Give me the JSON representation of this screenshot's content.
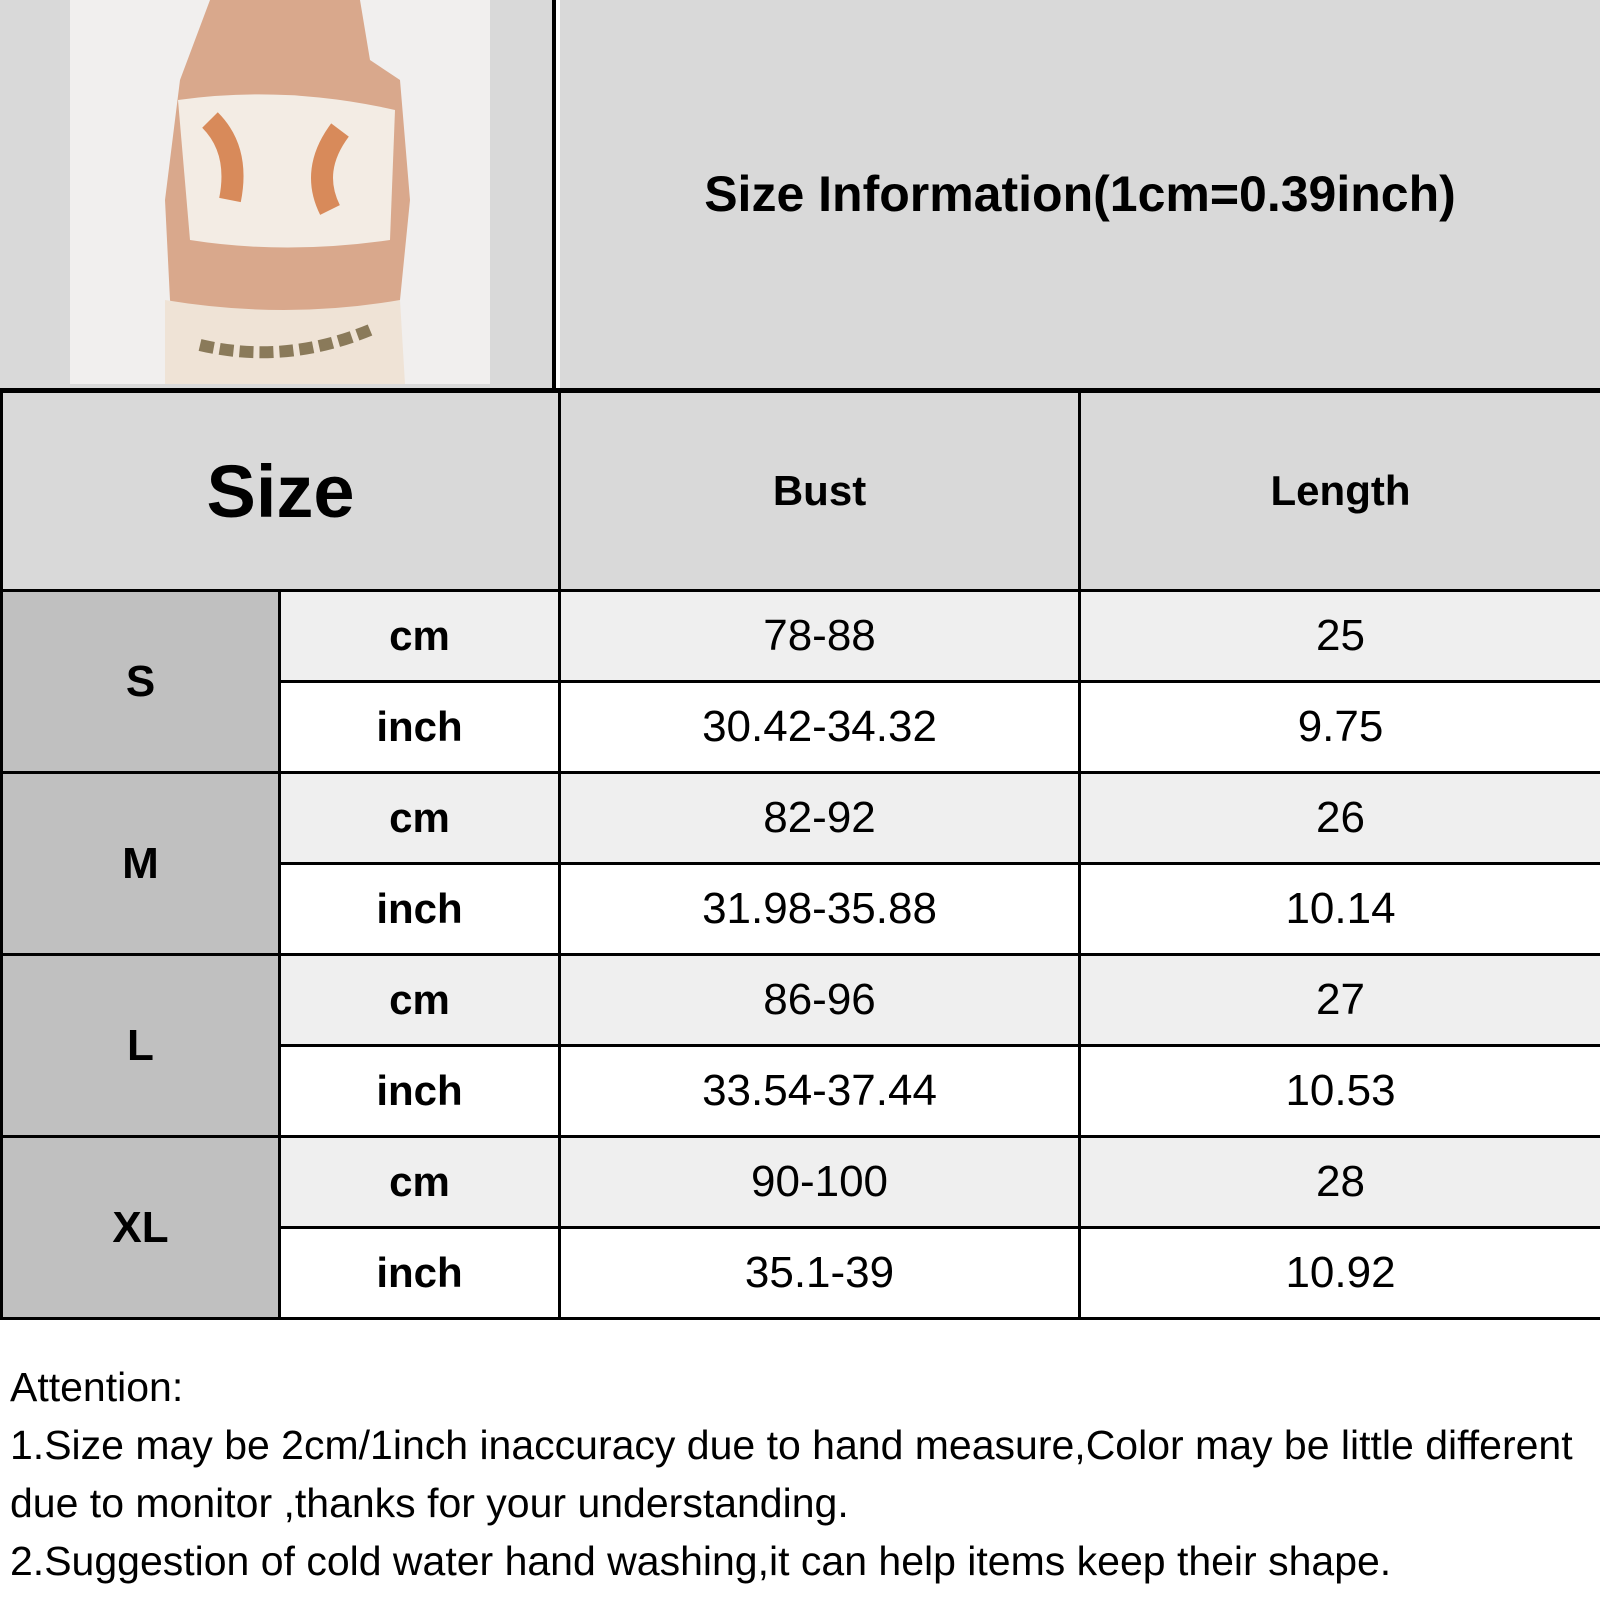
{
  "title": "Size Information(1cm=0.39inch)",
  "header": {
    "size": "Size",
    "bust": "Bust",
    "length": "Length"
  },
  "rows": [
    {
      "size": "S",
      "cm": {
        "unit": "cm",
        "bust": "78-88",
        "length": "25"
      },
      "inch": {
        "unit": "inch",
        "bust": "30.42-34.32",
        "length": "9.75"
      }
    },
    {
      "size": "M",
      "cm": {
        "unit": "cm",
        "bust": "82-92",
        "length": "26"
      },
      "inch": {
        "unit": "inch",
        "bust": "31.98-35.88",
        "length": "10.14"
      }
    },
    {
      "size": "L",
      "cm": {
        "unit": "cm",
        "bust": "86-96",
        "length": "27"
      },
      "inch": {
        "unit": "inch",
        "bust": "33.54-37.44",
        "length": "10.53"
      }
    },
    {
      "size": "XL",
      "cm": {
        "unit": "cm",
        "bust": "90-100",
        "length": "28"
      },
      "inch": {
        "unit": "inch",
        "bust": "35.1-39",
        "length": "10.92"
      }
    }
  ],
  "attention": {
    "heading": "Attention:",
    "items": [
      "1.Size may be 2cm/1inch inaccuracy due to hand measure,Color may be little different due to monitor ,thanks for your understanding.",
      "2.Suggestion of cold water hand washing,it can help items keep their shape."
    ]
  },
  "colors": {
    "header_bg": "#d9d9d9",
    "size_cell_bg": "#c0c0c0",
    "cm_row_bg": "#efefef",
    "inch_row_bg": "#ffffff"
  }
}
